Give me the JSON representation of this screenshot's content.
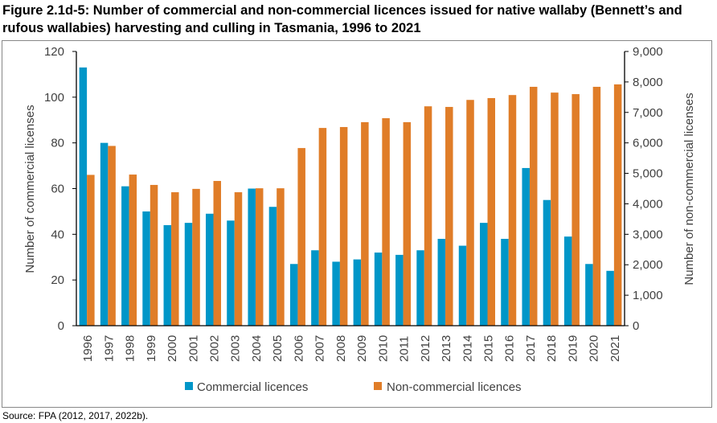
{
  "title": "Figure 2.1d-5: Number of commercial and non-commercial licences issued for native wallaby (Bennett’s and rufous wallabies) harvesting and culling in Tasmania, 1996 to 2021",
  "source": "Source: FPA (2012, 2017, 2022b).",
  "chart_data": {
    "type": "bar",
    "categories": [
      "1996",
      "1997",
      "1998",
      "1999",
      "2000",
      "2001",
      "2002",
      "2003",
      "2004",
      "2005",
      "2006",
      "2007",
      "2008",
      "2009",
      "2010",
      "2011",
      "2012",
      "2013",
      "2014",
      "2015",
      "2016",
      "2017",
      "2018",
      "2019",
      "2020",
      "2021"
    ],
    "series": [
      {
        "name": "Commercial licences",
        "axis": "left",
        "color": "#0096c8",
        "values": [
          113,
          80,
          61,
          50,
          44,
          45,
          49,
          46,
          60,
          52,
          27,
          33,
          28,
          29,
          32,
          31,
          33,
          38,
          35,
          45,
          38,
          69,
          55,
          39,
          27,
          24
        ]
      },
      {
        "name": "Non-commercial licences",
        "axis": "right",
        "color": "#e07d28",
        "values": [
          4950,
          5900,
          4960,
          4620,
          4380,
          4490,
          4750,
          4380,
          4510,
          4510,
          5830,
          6490,
          6520,
          6680,
          6810,
          6680,
          7200,
          7180,
          7410,
          7470,
          7570,
          7840,
          7650,
          7600,
          7840,
          7920
        ]
      }
    ],
    "ylabel": "Number of commercial licenses",
    "ylabel_right": "Number of non-commercial licenses",
    "ylim": [
      0,
      120
    ],
    "ylim_right": [
      0,
      9000
    ],
    "yticks": [
      "0",
      "20",
      "40",
      "60",
      "80",
      "100",
      "120"
    ],
    "yticks_right": [
      "0",
      "1,000",
      "2,000",
      "3,000",
      "4,000",
      "5,000",
      "6,000",
      "7,000",
      "8,000",
      "9,000"
    ],
    "grid": false,
    "legend": "bottom"
  }
}
